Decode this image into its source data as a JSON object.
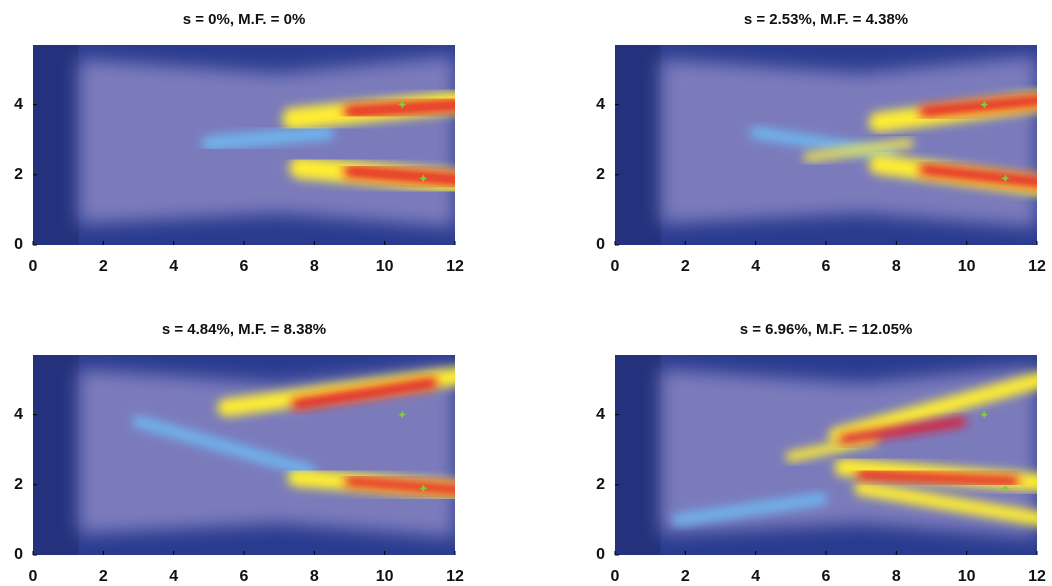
{
  "chart_data": [
    {
      "type": "heatmap",
      "title": "s = 0%, M.F. = 0%",
      "xlim": [
        0,
        12
      ],
      "ylim": [
        0,
        5.7
      ],
      "xticks": [
        0,
        2,
        4,
        6,
        8,
        10,
        12
      ],
      "yticks": [
        0,
        2,
        4
      ],
      "points": {
        "x": [
          10.5,
          11.1
        ],
        "y": [
          4.0,
          1.9
        ],
        "color": "#7fcf3a"
      }
    },
    {
      "type": "heatmap",
      "title": "s = 2.53%, M.F. = 4.38%",
      "xlim": [
        0,
        12
      ],
      "ylim": [
        0,
        5.7
      ],
      "xticks": [
        0,
        2,
        4,
        6,
        8,
        10,
        12
      ],
      "yticks": [
        0,
        2,
        4
      ],
      "points": {
        "x": [
          10.5,
          11.1
        ],
        "y": [
          4.0,
          1.9
        ],
        "color": "#7fcf3a"
      }
    },
    {
      "type": "heatmap",
      "title": "s = 4.84%, M.F. = 8.38%",
      "xlim": [
        0,
        12
      ],
      "ylim": [
        0,
        5.7
      ],
      "xticks": [
        0,
        2,
        4,
        6,
        8,
        10,
        12
      ],
      "yticks": [
        0,
        2,
        4
      ],
      "points": {
        "x": [
          10.5,
          11.1
        ],
        "y": [
          4.0,
          1.9
        ],
        "color": "#7fcf3a"
      }
    },
    {
      "type": "heatmap",
      "title": "s = 6.96%, M.F. = 12.05%",
      "xlim": [
        0,
        12
      ],
      "ylim": [
        0,
        5.7
      ],
      "xticks": [
        0,
        2,
        4,
        6,
        8,
        10,
        12
      ],
      "yticks": [
        0,
        2,
        4
      ],
      "points": {
        "x": [
          10.5,
          11.1
        ],
        "y": [
          4.0,
          1.9
        ],
        "color": "#7fcf3a"
      }
    }
  ]
}
